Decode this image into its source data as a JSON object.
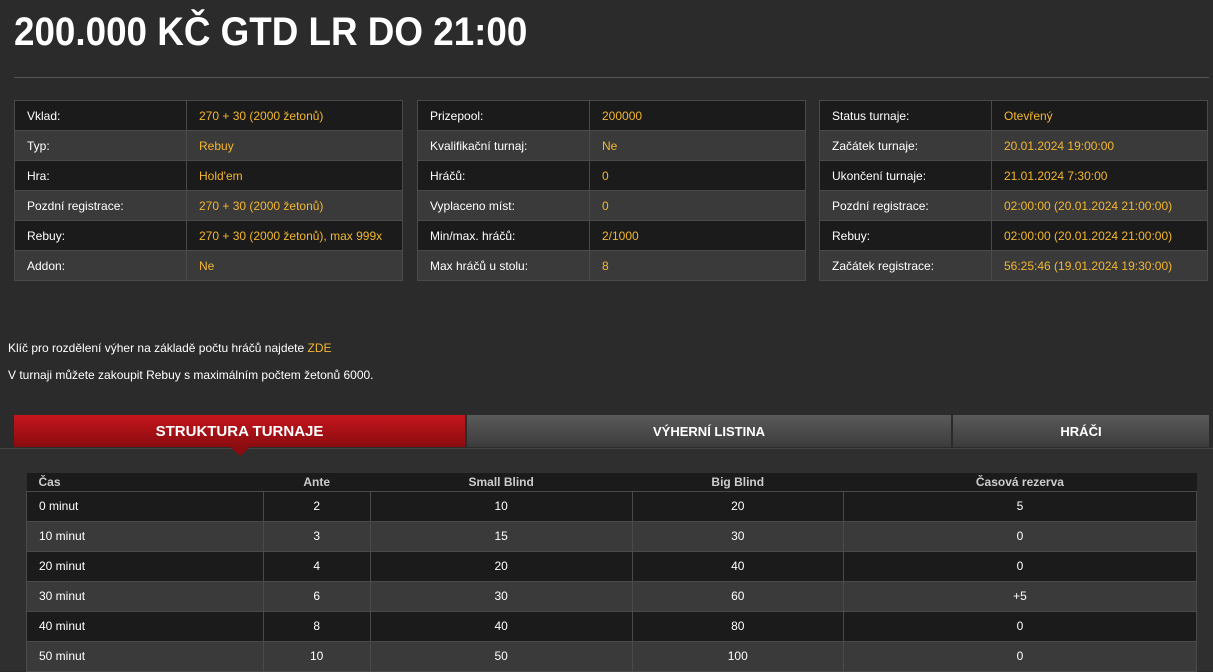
{
  "title": "200.000 KČ GTD LR DO 21:00",
  "info_tables": [
    [
      [
        "Vklad:",
        "270 + 30 (2000 žetonů)"
      ],
      [
        "Typ:",
        "Rebuy"
      ],
      [
        "Hra:",
        "Hold'em"
      ],
      [
        "Pozdní registrace:",
        "270 + 30 (2000 žetonů)"
      ],
      [
        "Rebuy:",
        "270 + 30 (2000 žetonů), max 999x"
      ],
      [
        "Addon:",
        "Ne"
      ]
    ],
    [
      [
        "Prizepool:",
        "200000"
      ],
      [
        "Kvalifikační turnaj:",
        "Ne"
      ],
      [
        "Hráčů:",
        "0"
      ],
      [
        "Vyplaceno míst:",
        "0"
      ],
      [
        "Min/max. hráčů:",
        "2/1000"
      ],
      [
        "Max hráčů u stolu:",
        "8"
      ]
    ],
    [
      [
        "Status turnaje:",
        "Otevřený"
      ],
      [
        "Začátek turnaje:",
        "20.01.2024 19:00:00"
      ],
      [
        "Ukončení turnaje:",
        "21.01.2024 7:30:00"
      ],
      [
        "Pozdní registrace:",
        "02:00:00 (20.01.2024 21:00:00)"
      ],
      [
        "Rebuy:",
        "02:00:00 (20.01.2024 21:00:00)"
      ],
      [
        "Začátek registrace:",
        "56:25:46 (19.01.2024 19:30:00)"
      ]
    ]
  ],
  "notes": {
    "line1": "Klíč pro rozdělení výher na základě počtu hráčů najdete ",
    "line1_link": "ZDE",
    "line2": "V turnaji můžete zakoupit Rebuy s maximálním počtem žetonů 6000."
  },
  "tabs": [
    {
      "label": "STRUKTURA TURNAJE",
      "active": true
    },
    {
      "label": "VÝHERNÍ LISTINA"
    },
    {
      "label": "HRÁČI"
    }
  ],
  "structure": {
    "headers": [
      "Čas",
      "Ante",
      "Small Blind",
      "Big Blind",
      "Časová rezerva"
    ],
    "rows": [
      [
        "0 minut",
        "2",
        "10",
        "20",
        "5"
      ],
      [
        "10 minut",
        "3",
        "15",
        "30",
        "0"
      ],
      [
        "20 minut",
        "4",
        "20",
        "40",
        "0"
      ],
      [
        "30 minut",
        "6",
        "30",
        "60",
        "+5"
      ],
      [
        "40 minut",
        "8",
        "40",
        "80",
        "0"
      ],
      [
        "50 minut",
        "10",
        "50",
        "100",
        "0"
      ]
    ]
  },
  "colors": {
    "accent": "#f2b630",
    "active_tab": "#c4161c"
  }
}
